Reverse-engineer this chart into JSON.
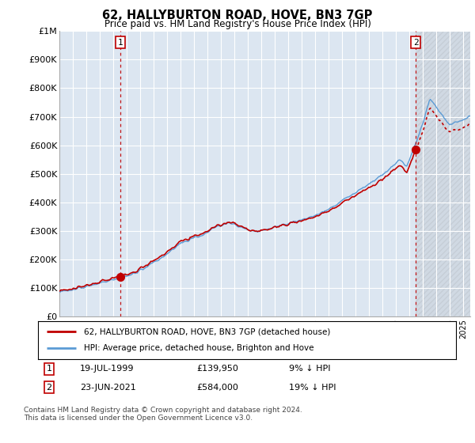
{
  "title": "62, HALLYBURTON ROAD, HOVE, BN3 7GP",
  "subtitle": "Price paid vs. HM Land Registry's House Price Index (HPI)",
  "legend_line1": "62, HALLYBURTON ROAD, HOVE, BN3 7GP (detached house)",
  "legend_line2": "HPI: Average price, detached house, Brighton and Hove",
  "transaction1_date": "19-JUL-1999",
  "transaction1_price": 139950,
  "transaction1_label": "9% ↓ HPI",
  "transaction2_date": "23-JUN-2021",
  "transaction2_price": 584000,
  "transaction2_label": "19% ↓ HPI",
  "footer": "Contains HM Land Registry data © Crown copyright and database right 2024.\nThis data is licensed under the Open Government Licence v3.0.",
  "hpi_color": "#5b9bd5",
  "price_color": "#c00000",
  "background_color": "#ffffff",
  "chart_bg_color": "#dce6f1",
  "grid_color": "#ffffff",
  "ylim": [
    0,
    1000000
  ],
  "yticks": [
    0,
    100000,
    200000,
    300000,
    400000,
    500000,
    600000,
    700000,
    800000,
    900000,
    1000000
  ],
  "ytick_labels": [
    "£0",
    "£100K",
    "£200K",
    "£300K",
    "£400K",
    "£500K",
    "£600K",
    "£700K",
    "£800K",
    "£900K",
    "£1M"
  ],
  "start_year": 1995,
  "end_year": 2025
}
